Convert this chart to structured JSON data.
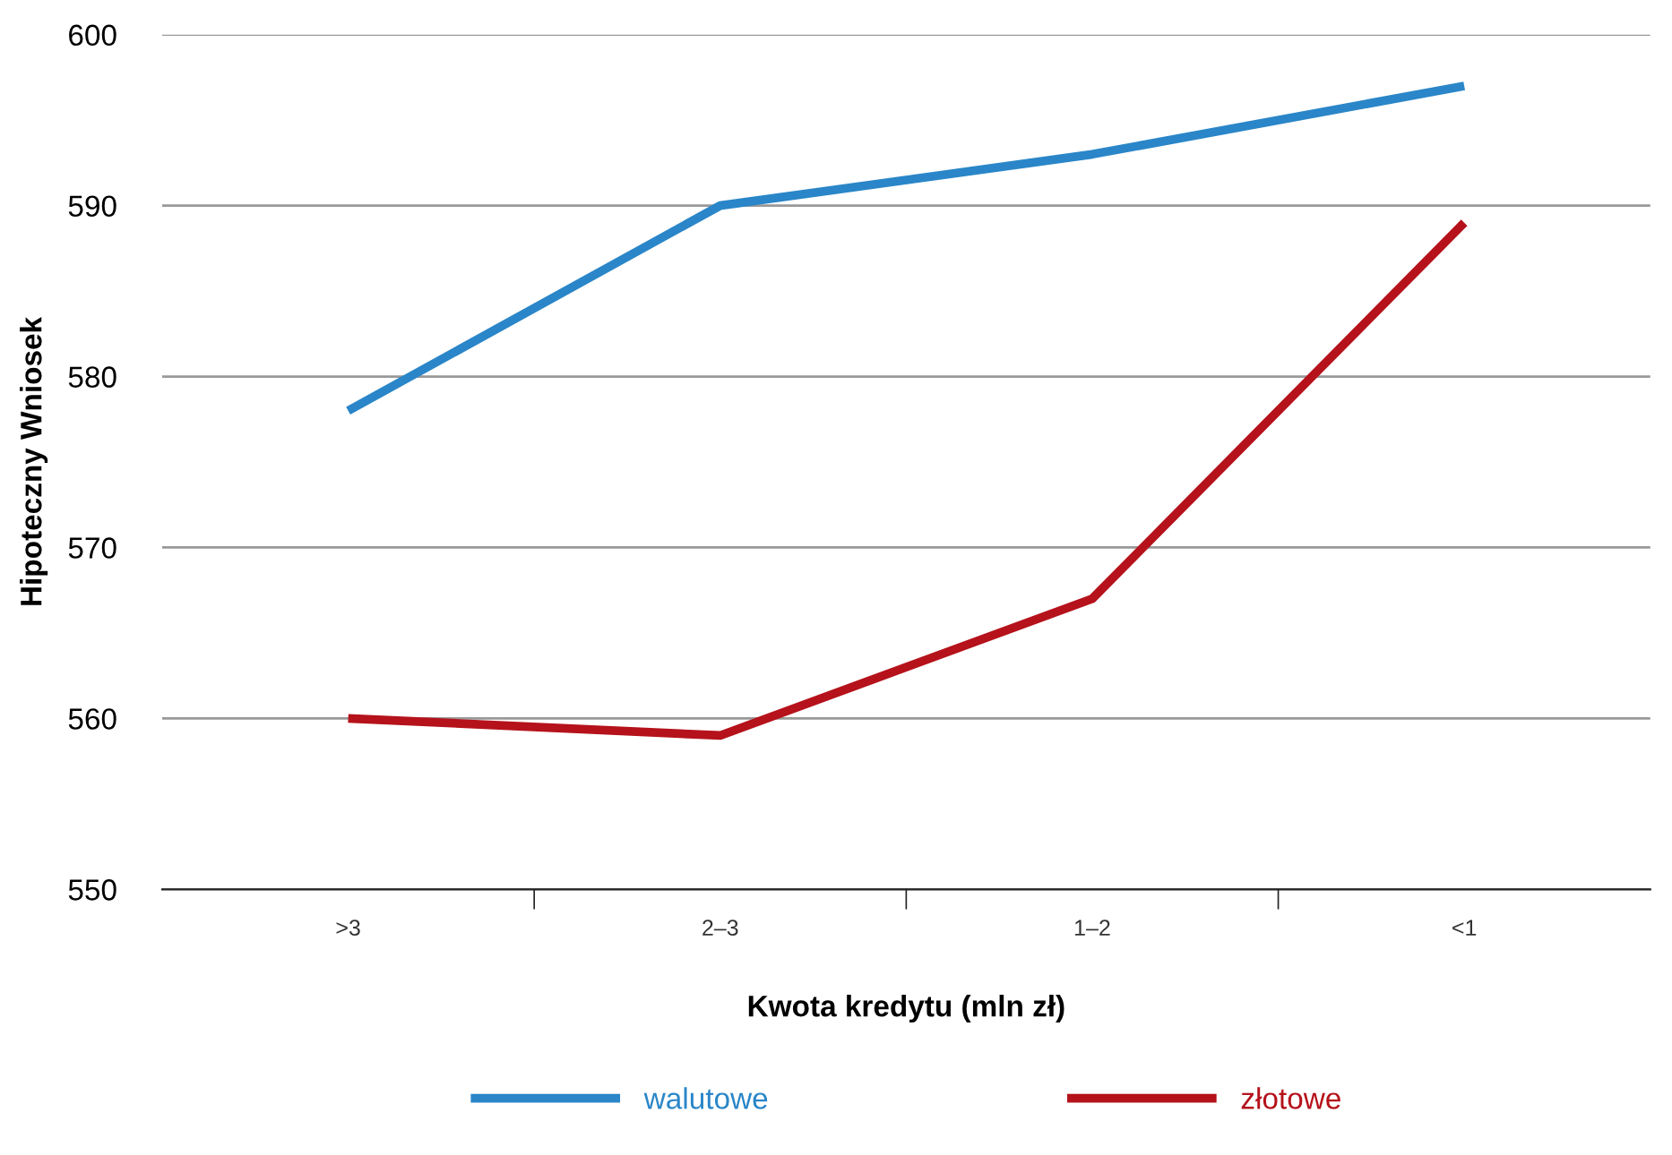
{
  "chart_data": {
    "type": "line",
    "xlabel": "Kwota kredytu (mln zł)",
    "ylabel": "Hipoteczny Wniosek",
    "categories": [
      ">3",
      "2–3",
      "1–2",
      "<1"
    ],
    "series": [
      {
        "name": "walutowe",
        "color": "#2a86c8",
        "values": [
          578,
          590,
          593,
          597
        ]
      },
      {
        "name": "złotowe",
        "color": "#b5121b",
        "values": [
          560,
          559,
          567,
          589
        ]
      }
    ],
    "ylim": [
      550,
      600
    ],
    "yticks": [
      550,
      560,
      570,
      580,
      590,
      600
    ],
    "grid": "y",
    "legend": "bottom",
    "marker": "none",
    "line_style": "solid"
  }
}
